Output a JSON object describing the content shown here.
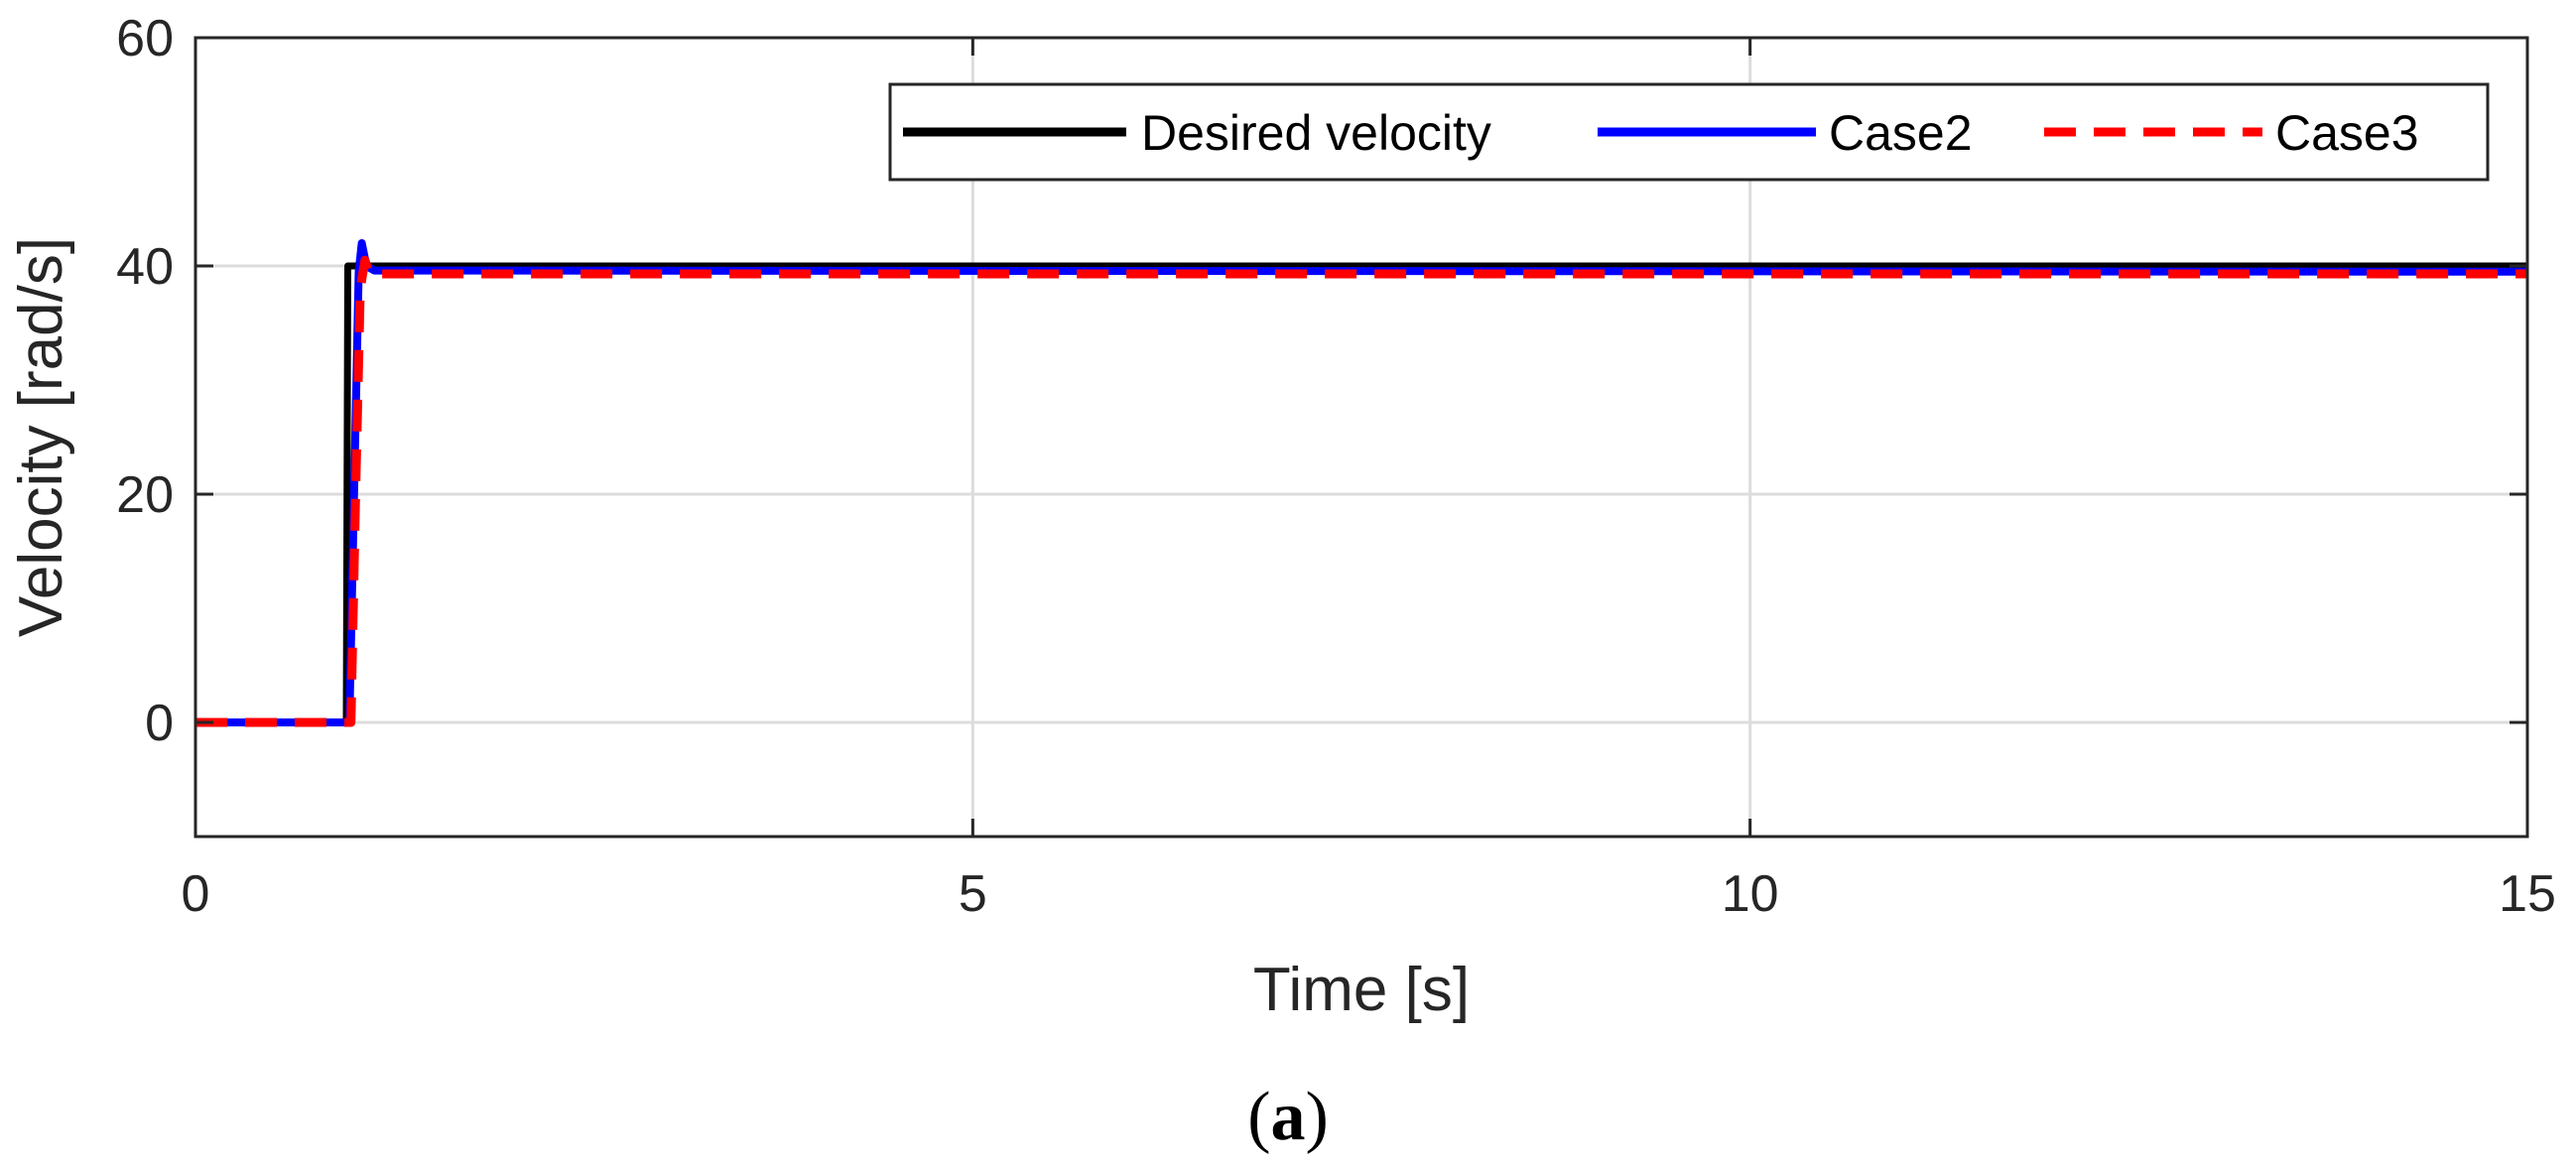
{
  "chart_data": {
    "type": "line",
    "title": "",
    "xlabel": "Time [s]",
    "ylabel": "Velocity [rad/s]",
    "xlim": [
      0,
      15
    ],
    "ylim": [
      -10,
      60
    ],
    "xticks": [
      0,
      5,
      10,
      15
    ],
    "yticks": [
      0,
      20,
      40,
      60
    ],
    "xtick_labels": [
      "0",
      "5",
      "10",
      "15"
    ],
    "ytick_labels": [
      "0",
      "20",
      "40",
      "60"
    ],
    "grid": true,
    "legend": "top-right",
    "series": [
      {
        "name": "Desired velocity",
        "color": "#000000",
        "style": "solid",
        "x": [
          0,
          0.97,
          0.98,
          15
        ],
        "y": [
          0,
          0,
          40,
          40
        ]
      },
      {
        "name": "Case2",
        "color": "#0000ff",
        "style": "solid",
        "x": [
          0,
          0.99,
          1.02,
          1.05,
          1.07,
          1.1,
          1.15,
          15
        ],
        "y": [
          0,
          0,
          20,
          39.5,
          42,
          40,
          39.6,
          39.5
        ]
      },
      {
        "name": "Case3",
        "color": "#ff0000",
        "style": "dashed",
        "x": [
          0,
          1.0,
          1.03,
          1.06,
          1.09,
          1.12,
          15
        ],
        "y": [
          0,
          0,
          20,
          38,
          40.5,
          39.3,
          39.3
        ]
      }
    ]
  },
  "caption": {
    "open": "(",
    "letter": "a",
    "close": ")"
  }
}
